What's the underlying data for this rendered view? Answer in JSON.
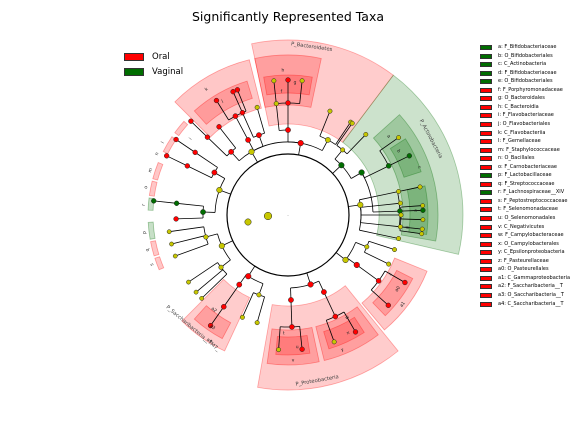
{
  "title": "Significantly Represented Taxa",
  "colors": {
    "oral": "#ff0000",
    "vaginal": "#006d00",
    "node_ns": "#c7c700",
    "line": "#000000"
  },
  "groups": [
    {
      "name": "Oral",
      "color": "#ff0000"
    },
    {
      "name": "Vaginal",
      "color": "#006d00"
    }
  ],
  "taxa": [
    {
      "key": "a",
      "name": "F_Bifidobacteriaceae",
      "group": "Vaginal"
    },
    {
      "key": "b",
      "name": "O_Bifidobacteriales",
      "group": "Vaginal"
    },
    {
      "key": "c",
      "name": "C_Actinobacteria",
      "group": "Vaginal"
    },
    {
      "key": "d",
      "name": "F_Bifidobacteriaceae",
      "group": "Vaginal"
    },
    {
      "key": "e",
      "name": "O_Bifidobacteriales",
      "group": "Vaginal"
    },
    {
      "key": "f",
      "name": "F_Porphyromonadaceae",
      "group": "Oral"
    },
    {
      "key": "g",
      "name": "O_Bacteroidales",
      "group": "Oral"
    },
    {
      "key": "h",
      "name": "C_Bacteroidia",
      "group": "Oral"
    },
    {
      "key": "i",
      "name": "F_Flavobacteriaceae",
      "group": "Oral"
    },
    {
      "key": "j",
      "name": "O_Flavobacteriales",
      "group": "Oral"
    },
    {
      "key": "k",
      "name": "C_Flavobacteriia",
      "group": "Oral"
    },
    {
      "key": "l",
      "name": "F_Gemellaceae",
      "group": "Oral"
    },
    {
      "key": "m",
      "name": "F_Staphylococcaceae",
      "group": "Oral"
    },
    {
      "key": "n",
      "name": "O_Bacillales",
      "group": "Oral"
    },
    {
      "key": "o",
      "name": "F_Carnobacteriaceae",
      "group": "Oral"
    },
    {
      "key": "p",
      "name": "F_Lactobacillaceae",
      "group": "Vaginal"
    },
    {
      "key": "q",
      "name": "F_Streptococcaceae",
      "group": "Oral"
    },
    {
      "key": "r",
      "name": "F_Lachnospiraceae__XIV",
      "group": "Vaginal"
    },
    {
      "key": "s",
      "name": "F_Peptostreptococcaceae",
      "group": "Oral"
    },
    {
      "key": "t",
      "name": "F_Selenomonadaceae",
      "group": "Oral"
    },
    {
      "key": "u",
      "name": "O_Selenomonadales",
      "group": "Oral"
    },
    {
      "key": "v",
      "name": "C_Negativicutes",
      "group": "Oral"
    },
    {
      "key": "w",
      "name": "F_Campylobacteraceae",
      "group": "Oral"
    },
    {
      "key": "x",
      "name": "O_Campylobacterales",
      "group": "Oral"
    },
    {
      "key": "y",
      "name": "C_Epsilonproteobacteria",
      "group": "Oral"
    },
    {
      "key": "z",
      "name": "F_Pasteurellaceae",
      "group": "Oral"
    },
    {
      "key": "a0",
      "name": "O_Pasteurellales",
      "group": "Oral"
    },
    {
      "key": "a1",
      "name": "C_Gammaproteobacteria",
      "group": "Oral"
    },
    {
      "key": "a2",
      "name": "F_Saccharibacteria__T",
      "group": "Oral"
    },
    {
      "key": "a3",
      "name": "O_Saccharibacteria__T",
      "group": "Oral"
    },
    {
      "key": "a4",
      "name": "C_Saccharibacteria__T",
      "group": "Oral"
    }
  ],
  "phylum_labels": [
    "P_Bacteroidetes",
    "P_Actinobacteria",
    "P_Proteobacteria",
    "P_Saccharibacteria__TM7_"
  ],
  "center_label": "."
}
